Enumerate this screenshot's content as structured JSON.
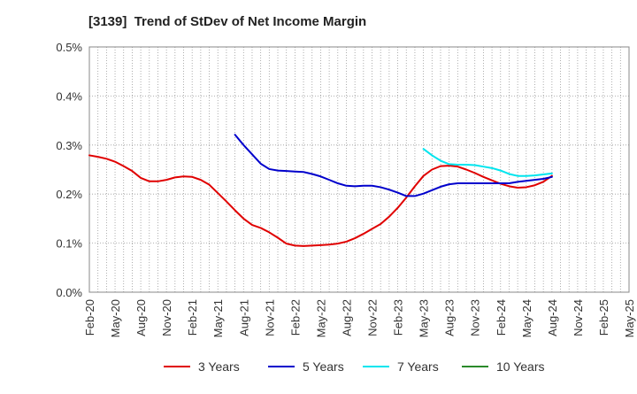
{
  "chart_data": {
    "type": "line",
    "title": "[3139]  Trend of StDev of Net Income Margin",
    "xlabel": "",
    "ylabel": "",
    "ylim": [
      0,
      0.5
    ],
    "y_ticks": [
      "0.0%",
      "0.1%",
      "0.2%",
      "0.3%",
      "0.4%",
      "0.5%"
    ],
    "x_ticks": [
      "Feb-20",
      "May-20",
      "Aug-20",
      "Nov-20",
      "Feb-21",
      "May-21",
      "Aug-21",
      "Nov-21",
      "Feb-22",
      "May-22",
      "Aug-22",
      "Nov-22",
      "Feb-23",
      "May-23",
      "Aug-23",
      "Nov-23",
      "Feb-24",
      "May-24",
      "Aug-24",
      "Nov-24",
      "Feb-25",
      "May-25"
    ],
    "grid": true,
    "legend_position": "bottom",
    "series": [
      {
        "name": "3 Years",
        "color": "#e00000",
        "points": [
          [
            "2020-02",
            0.279
          ],
          [
            "2020-03",
            0.276
          ],
          [
            "2020-04",
            0.272
          ],
          [
            "2020-05",
            0.266
          ],
          [
            "2020-06",
            0.257
          ],
          [
            "2020-07",
            0.247
          ],
          [
            "2020-08",
            0.233
          ],
          [
            "2020-09",
            0.226
          ],
          [
            "2020-10",
            0.226
          ],
          [
            "2020-11",
            0.229
          ],
          [
            "2020-12",
            0.234
          ],
          [
            "2021-01",
            0.236
          ],
          [
            "2021-02",
            0.235
          ],
          [
            "2021-03",
            0.229
          ],
          [
            "2021-04",
            0.219
          ],
          [
            "2021-05",
            0.202
          ],
          [
            "2021-06",
            0.185
          ],
          [
            "2021-07",
            0.167
          ],
          [
            "2021-08",
            0.15
          ],
          [
            "2021-09",
            0.137
          ],
          [
            "2021-10",
            0.131
          ],
          [
            "2021-11",
            0.122
          ],
          [
            "2021-12",
            0.111
          ],
          [
            "2022-01",
            0.099
          ],
          [
            "2022-02",
            0.095
          ],
          [
            "2022-03",
            0.094
          ],
          [
            "2022-04",
            0.095
          ],
          [
            "2022-05",
            0.096
          ],
          [
            "2022-06",
            0.097
          ],
          [
            "2022-07",
            0.099
          ],
          [
            "2022-08",
            0.103
          ],
          [
            "2022-09",
            0.11
          ],
          [
            "2022-10",
            0.119
          ],
          [
            "2022-11",
            0.129
          ],
          [
            "2022-12",
            0.139
          ],
          [
            "2023-01",
            0.154
          ],
          [
            "2023-02",
            0.172
          ],
          [
            "2023-03",
            0.193
          ],
          [
            "2023-04",
            0.216
          ],
          [
            "2023-05",
            0.237
          ],
          [
            "2023-06",
            0.25
          ],
          [
            "2023-07",
            0.257
          ],
          [
            "2023-08",
            0.258
          ],
          [
            "2023-09",
            0.256
          ],
          [
            "2023-10",
            0.25
          ],
          [
            "2023-11",
            0.243
          ],
          [
            "2023-12",
            0.235
          ],
          [
            "2024-01",
            0.228
          ],
          [
            "2024-02",
            0.221
          ],
          [
            "2024-03",
            0.216
          ],
          [
            "2024-04",
            0.213
          ],
          [
            "2024-05",
            0.214
          ],
          [
            "2024-06",
            0.218
          ],
          [
            "2024-07",
            0.225
          ],
          [
            "2024-08",
            0.237
          ]
        ]
      },
      {
        "name": "5 Years",
        "color": "#0000cc",
        "points": [
          [
            "2021-07",
            0.321
          ],
          [
            "2021-08",
            0.3
          ],
          [
            "2021-09",
            0.281
          ],
          [
            "2021-10",
            0.262
          ],
          [
            "2021-11",
            0.251
          ],
          [
            "2021-12",
            0.248
          ],
          [
            "2022-01",
            0.247
          ],
          [
            "2022-02",
            0.246
          ],
          [
            "2022-03",
            0.245
          ],
          [
            "2022-04",
            0.241
          ],
          [
            "2022-05",
            0.236
          ],
          [
            "2022-06",
            0.229
          ],
          [
            "2022-07",
            0.222
          ],
          [
            "2022-08",
            0.217
          ],
          [
            "2022-09",
            0.216
          ],
          [
            "2022-10",
            0.217
          ],
          [
            "2022-11",
            0.217
          ],
          [
            "2022-12",
            0.214
          ],
          [
            "2023-01",
            0.209
          ],
          [
            "2023-02",
            0.203
          ],
          [
            "2023-03",
            0.196
          ],
          [
            "2023-04",
            0.196
          ],
          [
            "2023-05",
            0.201
          ],
          [
            "2023-06",
            0.208
          ],
          [
            "2023-07",
            0.215
          ],
          [
            "2023-08",
            0.22
          ],
          [
            "2023-09",
            0.222
          ],
          [
            "2023-10",
            0.222
          ],
          [
            "2023-11",
            0.222
          ],
          [
            "2023-12",
            0.222
          ],
          [
            "2024-01",
            0.222
          ],
          [
            "2024-02",
            0.222
          ],
          [
            "2024-03",
            0.222
          ],
          [
            "2024-04",
            0.225
          ],
          [
            "2024-05",
            0.227
          ],
          [
            "2024-06",
            0.229
          ],
          [
            "2024-07",
            0.231
          ],
          [
            "2024-08",
            0.235
          ]
        ]
      },
      {
        "name": "7 Years",
        "color": "#00e5ee",
        "points": [
          [
            "2023-05",
            0.292
          ],
          [
            "2023-06",
            0.279
          ],
          [
            "2023-07",
            0.268
          ],
          [
            "2023-08",
            0.261
          ],
          [
            "2023-09",
            0.26
          ],
          [
            "2023-10",
            0.26
          ],
          [
            "2023-11",
            0.259
          ],
          [
            "2023-12",
            0.256
          ],
          [
            "2024-01",
            0.253
          ],
          [
            "2024-02",
            0.248
          ],
          [
            "2024-03",
            0.241
          ],
          [
            "2024-04",
            0.237
          ],
          [
            "2024-05",
            0.237
          ],
          [
            "2024-06",
            0.238
          ],
          [
            "2024-07",
            0.24
          ],
          [
            "2024-08",
            0.242
          ]
        ]
      },
      {
        "name": "10 Years",
        "color": "#2a8a2a",
        "points": []
      }
    ]
  }
}
